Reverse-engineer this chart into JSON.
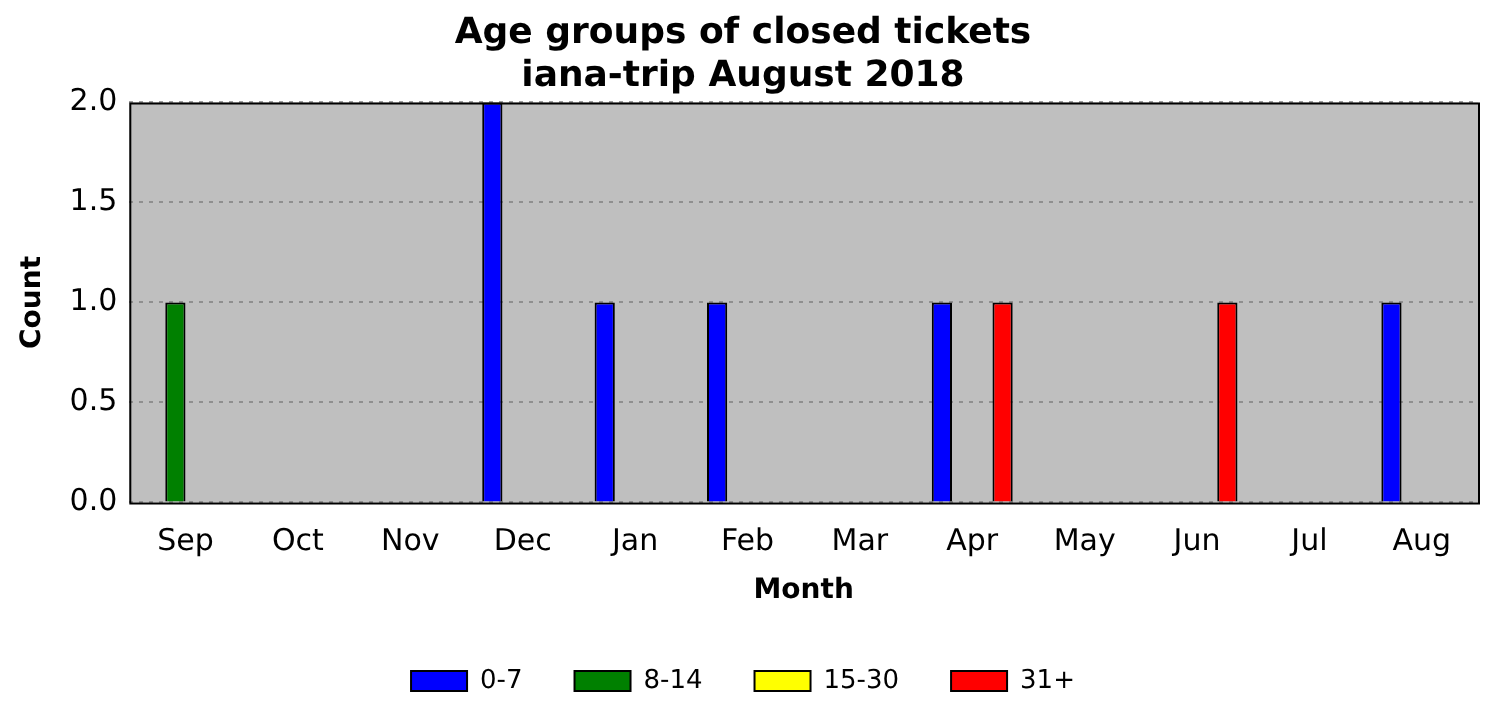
{
  "chart_data": {
    "type": "bar",
    "title": "Age groups of closed tickets",
    "subtitle": "iana-trip August 2018",
    "xlabel": "Month",
    "ylabel": "Count",
    "categories": [
      "Sep",
      "Oct",
      "Nov",
      "Dec",
      "Jan",
      "Feb",
      "Mar",
      "Apr",
      "May",
      "Jun",
      "Jul",
      "Aug"
    ],
    "series": [
      {
        "name": "0-7",
        "color": "#0000ff",
        "values": [
          0,
          0,
          0,
          2,
          1,
          1,
          0,
          1,
          0,
          0,
          0,
          1
        ]
      },
      {
        "name": "8-14",
        "color": "#008000",
        "values": [
          1,
          0,
          0,
          0,
          0,
          0,
          0,
          0,
          0,
          0,
          0,
          0
        ]
      },
      {
        "name": "15-30",
        "color": "#ffff00",
        "values": [
          0,
          0,
          0,
          0,
          0,
          0,
          0,
          0,
          0,
          0,
          0,
          0
        ]
      },
      {
        "name": "31+",
        "color": "#ff0000",
        "values": [
          0,
          0,
          0,
          0,
          0,
          0,
          0,
          1,
          0,
          1,
          0,
          0
        ]
      }
    ],
    "ylim": [
      0,
      2
    ],
    "yticks": [
      {
        "value": 0,
        "label": "0.0"
      },
      0.5,
      {
        "value": 1,
        "label": "1.0"
      },
      1.5,
      {
        "value": 2,
        "label": "2.0"
      }
    ],
    "grid": "y",
    "legend": "bottom"
  }
}
